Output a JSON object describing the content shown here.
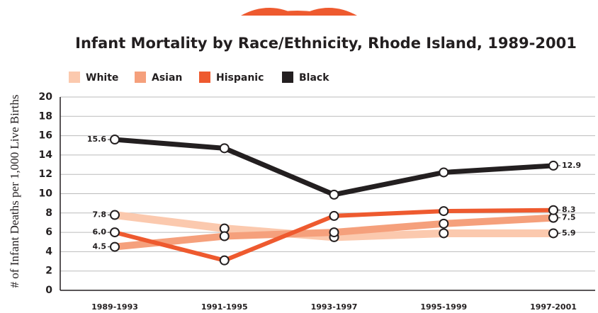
{
  "chart_data": {
    "type": "line",
    "title": "Infant Mortality by Race/Ethnicity, Rhode Island, 1989-2001",
    "y_label": "# of Infant Deaths per 1,000 Live Births",
    "categories": [
      "1989-1993",
      "1991-1995",
      "1993-1997",
      "1995-1999",
      "1997-2001"
    ],
    "series": [
      {
        "name": "White",
        "color": "#fbc9ae",
        "values": [
          7.8,
          6.4,
          5.5,
          5.9,
          5.9
        ],
        "value_labels": [
          "7.8",
          null,
          null,
          null,
          "5.9"
        ]
      },
      {
        "name": "Asian",
        "color": "#f5a07c",
        "values": [
          4.5,
          5.6,
          6.0,
          6.9,
          7.5
        ],
        "value_labels": [
          "4.5",
          null,
          null,
          null,
          "7.5"
        ]
      },
      {
        "name": "Hispanic",
        "color": "#ee5a2f",
        "values": [
          6.0,
          3.1,
          7.7,
          8.2,
          8.3
        ],
        "value_labels": [
          "6.0",
          null,
          null,
          null,
          "8.3"
        ]
      },
      {
        "name": "Black",
        "color": "#231f20",
        "values": [
          15.6,
          14.7,
          9.9,
          12.2,
          12.9
        ],
        "value_labels": [
          "15.6",
          null,
          null,
          null,
          "12.9"
        ]
      }
    ],
    "ylim": [
      0,
      20
    ],
    "yticks": [
      0,
      2,
      4,
      6,
      8,
      10,
      12,
      14,
      16,
      18,
      20
    ],
    "grid": true
  }
}
